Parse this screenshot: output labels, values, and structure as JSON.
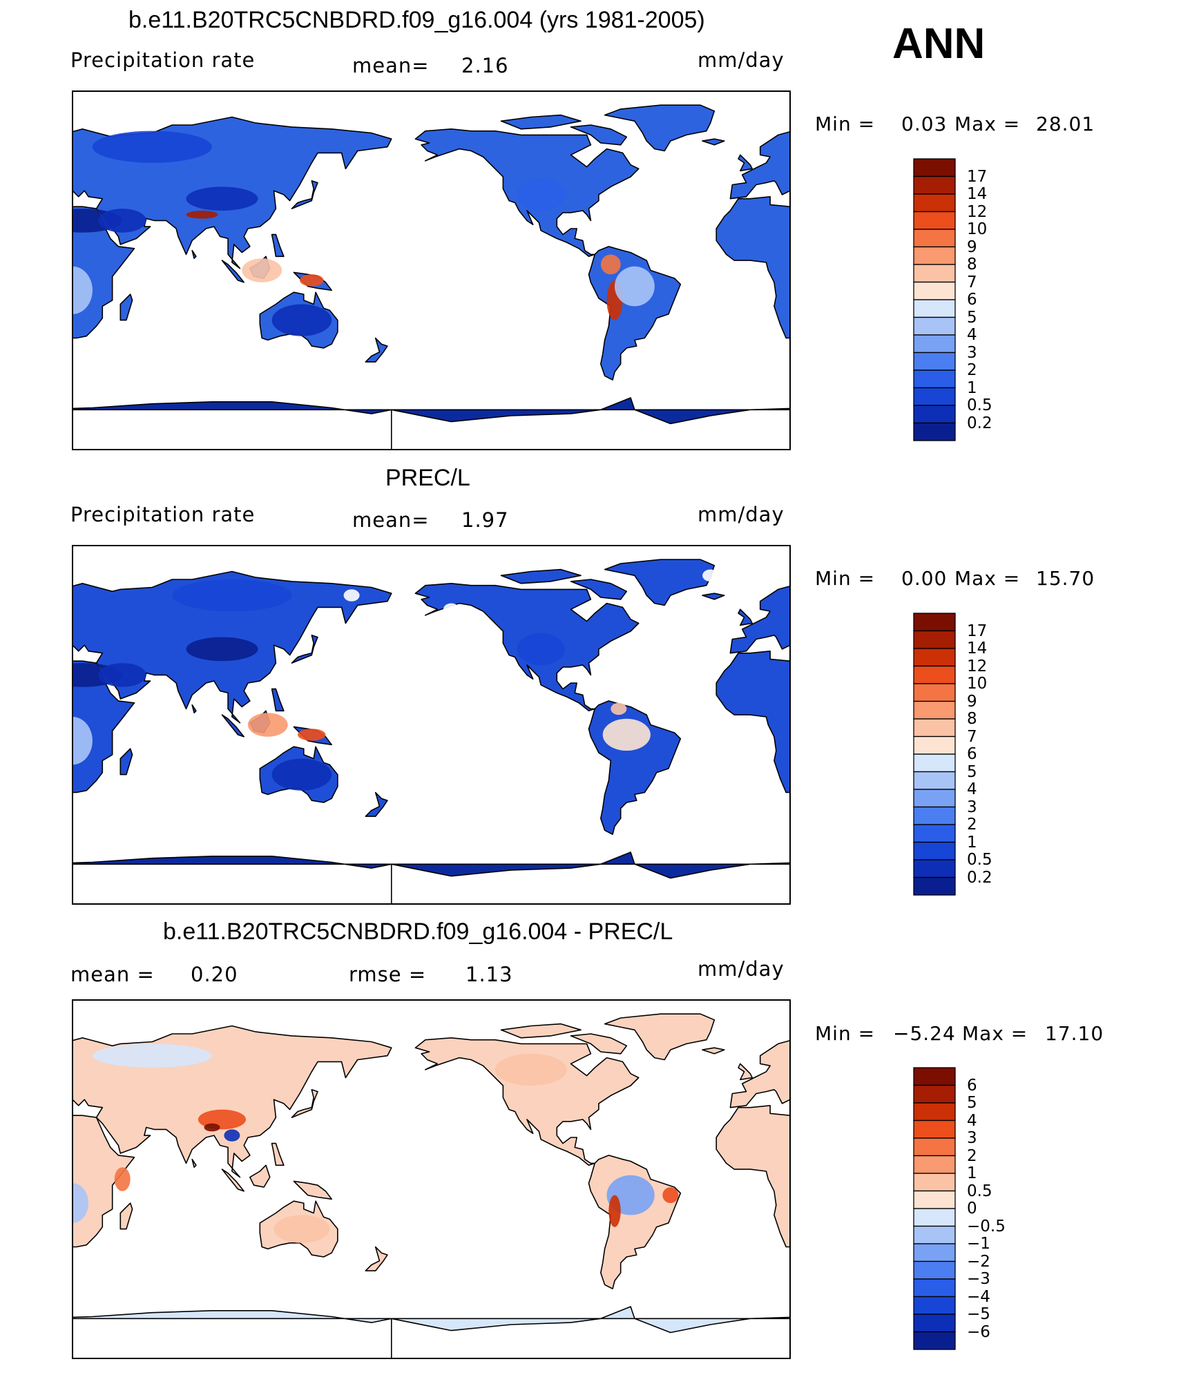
{
  "season": "ANN",
  "panels": [
    {
      "id": "model",
      "title": "b.e11.B20TRC5CNBDRD.f09_g16.004 (yrs 1981-2005)",
      "left_label": "Precipitation rate",
      "center_label": "mean=",
      "center_value": "2.16",
      "units": "mm/day",
      "min_label": "Min =",
      "min_value": "0.03",
      "max_label": "Max =",
      "max_value": "28.01",
      "colorbar_ticks": [
        "17",
        "14",
        "12",
        "10",
        "9",
        "8",
        "7",
        "6",
        "5",
        "4",
        "3",
        "2",
        "1",
        "0.5",
        "0.2"
      ]
    },
    {
      "id": "obs",
      "title": "PREC/L",
      "left_label": "Precipitation rate",
      "center_label": "mean=",
      "center_value": "1.97",
      "units": "mm/day",
      "min_label": "Min =",
      "min_value": "0.00",
      "max_label": "Max =",
      "max_value": "15.70",
      "colorbar_ticks": [
        "17",
        "14",
        "12",
        "10",
        "9",
        "8",
        "7",
        "6",
        "5",
        "4",
        "3",
        "2",
        "1",
        "0.5",
        "0.2"
      ]
    },
    {
      "id": "diff",
      "title": "b.e11.B20TRC5CNBDRD.f09_g16.004 - PREC/L",
      "left_label": "mean =",
      "left_value": "0.20",
      "center_label": "rmse =",
      "center_value": "1.13",
      "units": "mm/day",
      "min_label": "Min =",
      "min_value": "−5.24",
      "max_label": "Max =",
      "max_value": "17.10",
      "colorbar_ticks": [
        "6",
        "5",
        "4",
        "3",
        "2",
        "1",
        "0.5",
        "0",
        "−0.5",
        "−1",
        "−2",
        "−3",
        "−4",
        "−5",
        "−6"
      ]
    }
  ],
  "colors": {
    "precip_scale": [
      "#0a1f8f",
      "#0d2fb8",
      "#1745d6",
      "#2a5ee8",
      "#4b7ef0",
      "#7aa2f4",
      "#a8c4f7",
      "#d6e6fb",
      "#fde4d2",
      "#fbc3a6",
      "#f99a70",
      "#f47443",
      "#ec4e1c",
      "#cc3006",
      "#a51d02",
      "#7a0f00"
    ],
    "diff_scale": [
      "#0a1f8f",
      "#0d2fb8",
      "#1745d6",
      "#2a5ee8",
      "#4b7ef0",
      "#7aa2f4",
      "#a8c4f7",
      "#d6e6fb",
      "#fde4d2",
      "#fbc3a6",
      "#f99a70",
      "#f47443",
      "#ec4e1c",
      "#cc3006",
      "#a51d02",
      "#7a0f00"
    ],
    "land_model": "#2d63df",
    "land_obs": "#1f4fd6",
    "land_diff": "#fbd2bd",
    "antarctica": "#0b2a9e"
  }
}
